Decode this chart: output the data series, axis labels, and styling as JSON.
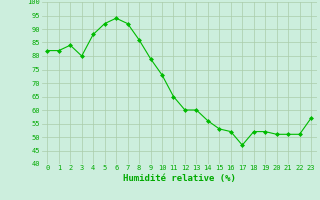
{
  "x": [
    0,
    1,
    2,
    3,
    4,
    5,
    6,
    7,
    8,
    9,
    10,
    11,
    12,
    13,
    14,
    15,
    16,
    17,
    18,
    19,
    20,
    21,
    22,
    23
  ],
  "y": [
    82,
    82,
    84,
    80,
    88,
    92,
    94,
    92,
    86,
    79,
    73,
    65,
    60,
    60,
    56,
    53,
    52,
    47,
    52,
    52,
    51,
    51,
    51,
    57
  ],
  "line_color": "#00bb00",
  "marker_color": "#00bb00",
  "bg_color": "#cceedd",
  "grid_color": "#aaccaa",
  "xlabel": "Humidité relative (%)",
  "xlabel_color": "#00aa00",
  "tick_color": "#00aa00",
  "ylim": [
    40,
    100
  ],
  "yticks": [
    40,
    45,
    50,
    55,
    60,
    65,
    70,
    75,
    80,
    85,
    90,
    95,
    100
  ]
}
